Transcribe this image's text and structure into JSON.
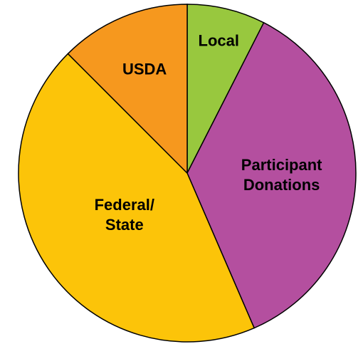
{
  "chart_data": {
    "type": "pie",
    "categories": [
      "Local",
      "Participant Donations",
      "Federal/ State",
      "USDA"
    ],
    "values": [
      7.5,
      36,
      44,
      12.5
    ],
    "colors": [
      "#98c83e",
      "#b44f9f",
      "#fcc409",
      "#f6981e"
    ]
  }
}
